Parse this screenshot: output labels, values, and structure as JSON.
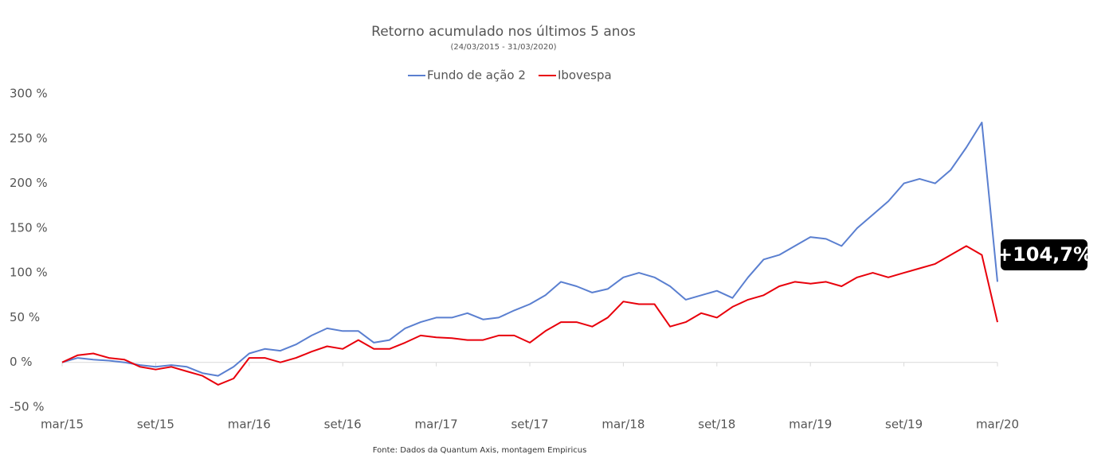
{
  "chart_data": {
    "type": "line",
    "title": "Retorno acumulado nos últimos 5 anos",
    "subtitle": "(24/03/2015 - 31/03/2020)",
    "source": "Fonte: Dados da Quantum Axis, montagem Empiricus",
    "annotation": "+104,7%",
    "categories": [
      "mar/15",
      null,
      null,
      null,
      null,
      null,
      "set/15",
      null,
      null,
      null,
      null,
      null,
      "mar/16",
      null,
      null,
      null,
      null,
      null,
      "set/16",
      null,
      null,
      null,
      null,
      null,
      "mar/17",
      null,
      null,
      null,
      null,
      null,
      "set/17",
      null,
      null,
      null,
      null,
      null,
      "mar/18",
      null,
      null,
      null,
      null,
      null,
      "set/18",
      null,
      null,
      null,
      null,
      null,
      "mar/19",
      null,
      null,
      null,
      null,
      null,
      "set/19",
      null,
      null,
      null,
      null,
      null,
      "mar/20"
    ],
    "series": [
      {
        "name": "Fundo de ação 2",
        "color": "#5a7fd0",
        "values": [
          0,
          5,
          3,
          2,
          0,
          -3,
          -5,
          -3,
          -5,
          -12,
          -15,
          -5,
          10,
          15,
          13,
          20,
          30,
          38,
          35,
          35,
          22,
          25,
          38,
          45,
          50,
          50,
          55,
          48,
          50,
          58,
          65,
          75,
          90,
          85,
          78,
          82,
          95,
          100,
          95,
          85,
          70,
          75,
          80,
          72,
          95,
          115,
          120,
          130,
          140,
          138,
          130,
          150,
          165,
          180,
          200,
          205,
          200,
          215,
          240,
          268,
          90
        ]
      },
      {
        "name": "Ibovespa",
        "color": "#e8000b",
        "values": [
          0,
          8,
          10,
          5,
          3,
          -5,
          -8,
          -5,
          -10,
          -15,
          -25,
          -18,
          5,
          5,
          0,
          5,
          12,
          18,
          15,
          25,
          15,
          15,
          22,
          30,
          28,
          27,
          25,
          25,
          30,
          30,
          22,
          35,
          45,
          45,
          40,
          50,
          68,
          65,
          65,
          40,
          45,
          55,
          50,
          62,
          70,
          75,
          85,
          90,
          88,
          90,
          85,
          95,
          100,
          95,
          100,
          105,
          110,
          120,
          130,
          120,
          45
        ]
      }
    ],
    "ylim": [
      -50,
      300
    ],
    "yticks": [
      {
        "value": -50,
        "label": "-50 %"
      },
      {
        "value": 0,
        "label": "0 %"
      },
      {
        "value": 50,
        "label": "50 %"
      },
      {
        "value": 100,
        "label": "100 %"
      },
      {
        "value": 150,
        "label": "150 %"
      },
      {
        "value": 200,
        "label": "200 %"
      },
      {
        "value": 250,
        "label": "250 %"
      },
      {
        "value": 300,
        "label": "300 %"
      }
    ],
    "grid": false,
    "legend": "top"
  }
}
